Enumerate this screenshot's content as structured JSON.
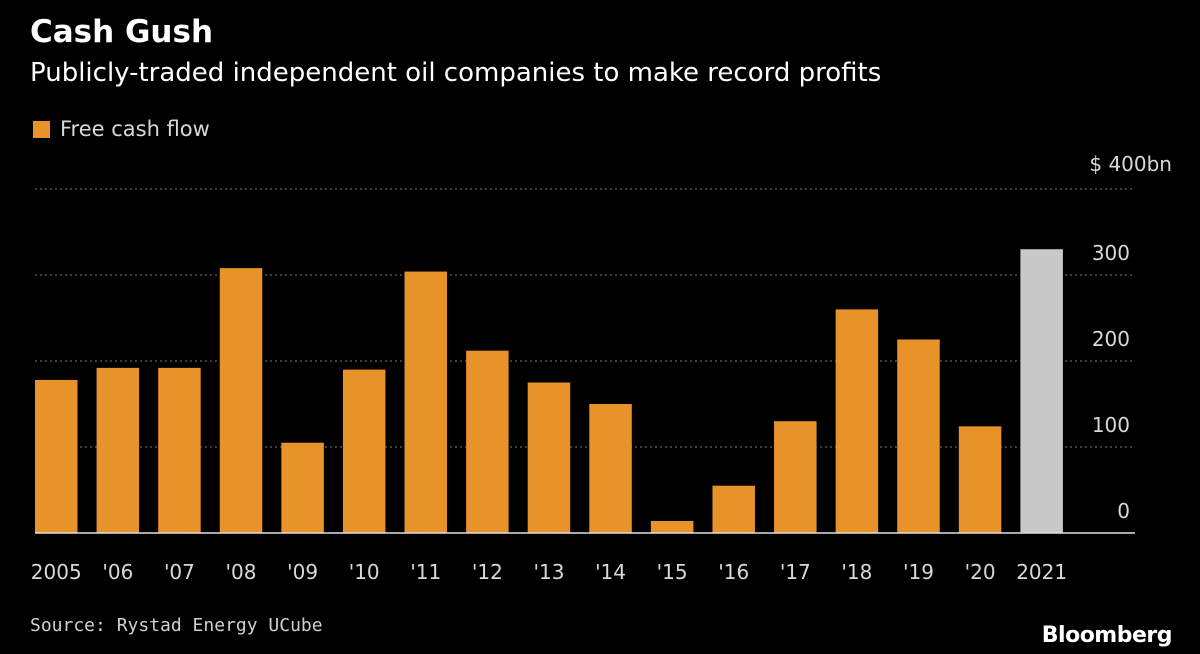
{
  "title": "Cash Gush",
  "subtitle": "Publicly-traded independent oil companies to make record profits",
  "legend": {
    "label": "Free cash flow",
    "color": "#e8922a"
  },
  "source": "Source: Rystad Energy UCube",
  "brand": "Bloomberg",
  "chart_data": {
    "type": "bar",
    "categories": [
      "2005",
      "'06",
      "'07",
      "'08",
      "'09",
      "'10",
      "'11",
      "'12",
      "'13",
      "'14",
      "'15",
      "'16",
      "'17",
      "'18",
      "'19",
      "'20",
      "2021"
    ],
    "series": [
      {
        "name": "Free cash flow",
        "values": [
          178,
          192,
          192,
          308,
          105,
          190,
          304,
          212,
          175,
          150,
          14,
          55,
          130,
          260,
          225,
          124,
          330
        ]
      }
    ],
    "bar_colors": [
      "#e8922a",
      "#e8922a",
      "#e8922a",
      "#e8922a",
      "#e8922a",
      "#e8922a",
      "#e8922a",
      "#e8922a",
      "#e8922a",
      "#e8922a",
      "#e8922a",
      "#e8922a",
      "#e8922a",
      "#e8922a",
      "#e8922a",
      "#e8922a",
      "#c8c8c8"
    ],
    "ylim": [
      0,
      400
    ],
    "yticks": [
      0,
      100,
      200,
      300
    ],
    "ytick_labels": [
      "0",
      "100",
      "200",
      "300"
    ],
    "top_tick_label": "$ 400bn",
    "grid": true
  }
}
